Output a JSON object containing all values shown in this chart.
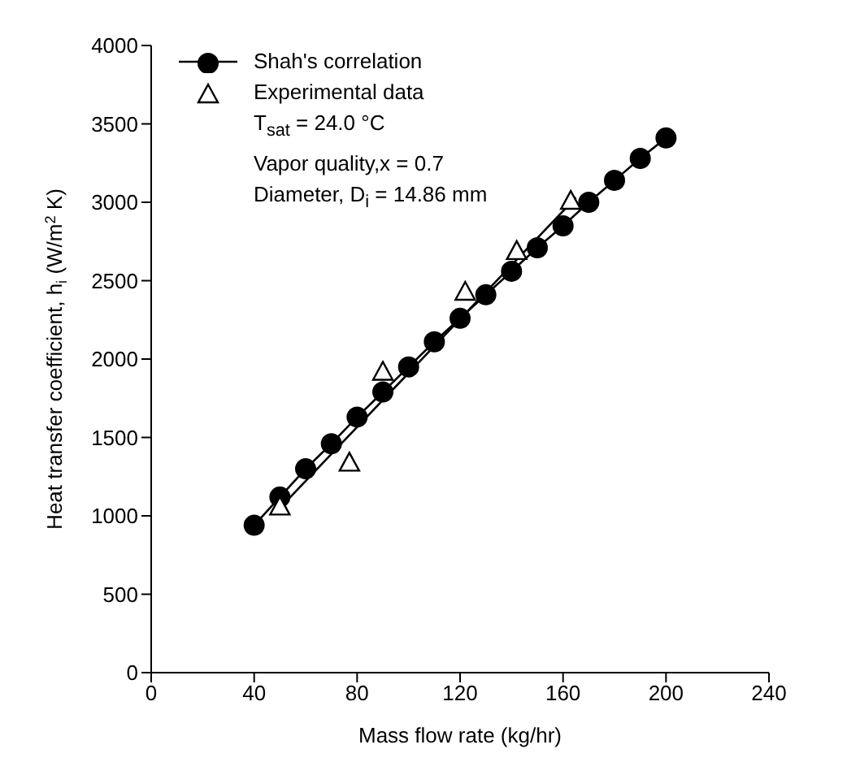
{
  "chart_data": {
    "type": "line",
    "xlabel": "Mass flow rate (kg/hr)",
    "ylabel": "Heat transfer coefficient, h$_{i}$ (W/m$^{2}$ K)",
    "xlim": [
      0,
      240
    ],
    "xticks": [
      0,
      40,
      80,
      120,
      160,
      200,
      240
    ],
    "ylim": [
      0,
      4000
    ],
    "yticks": [
      0,
      500,
      1000,
      1500,
      2000,
      2500,
      3000,
      3500,
      4000
    ],
    "legend": "top left",
    "annotations": [
      "T$_{sat}$ = 24.0 °C",
      "Vapor quality,x = 0.7",
      "Diameter, D$_{i}$ = 14.86 mm"
    ],
    "series": [
      {
        "name": "Shah's correlation",
        "type": "line",
        "marker": "circle",
        "color": "#000000",
        "x": [
          40,
          50,
          60,
          70,
          80,
          90,
          100,
          110,
          120,
          130,
          140,
          150,
          160,
          170,
          180,
          190,
          200
        ],
        "values": [
          940,
          1120,
          1300,
          1460,
          1630,
          1790,
          1950,
          2110,
          2260,
          2410,
          2560,
          2710,
          2850,
          3000,
          3140,
          3280,
          3410
        ]
      },
      {
        "name": "Experimental data",
        "type": "scatter",
        "marker": "triangle",
        "color": "#000000",
        "x": [
          50,
          77,
          90,
          122,
          142,
          163
        ],
        "values": [
          1060,
          1340,
          1920,
          2430,
          2690,
          3010
        ]
      },
      {
        "marker": "none",
        "color": "#000000",
        "x": [
          50,
          165
        ],
        "values": [
          1050,
          3030
        ]
      }
    ]
  }
}
